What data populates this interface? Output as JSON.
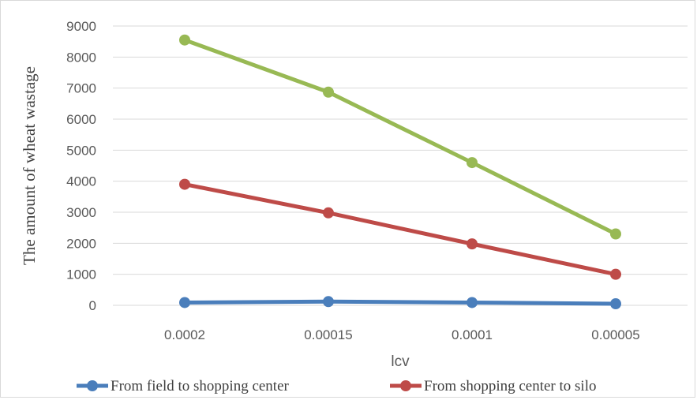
{
  "chart_data": {
    "type": "line",
    "title": "",
    "xlabel": "lcv",
    "ylabel": "The amount of wheat wastage",
    "categories": [
      "0.0002",
      "0.00015",
      "0.0001",
      "0.00005"
    ],
    "y_ticks": [
      "0",
      "1000",
      "2000",
      "3000",
      "4000",
      "5000",
      "6000",
      "7000",
      "8000",
      "9000"
    ],
    "ylim": [
      0,
      9000
    ],
    "grid": true,
    "legend_position": "bottom",
    "series": [
      {
        "name": "From field to shopping center",
        "color": "#4a7ebb",
        "values": [
          90,
          120,
          90,
          50
        ]
      },
      {
        "name": "From shopping center to silo",
        "color": "#be4b48",
        "values": [
          3900,
          2980,
          1980,
          1000
        ]
      },
      {
        "name": "",
        "color": "#98b954",
        "values": [
          8550,
          6870,
          4600,
          2300
        ]
      }
    ]
  }
}
